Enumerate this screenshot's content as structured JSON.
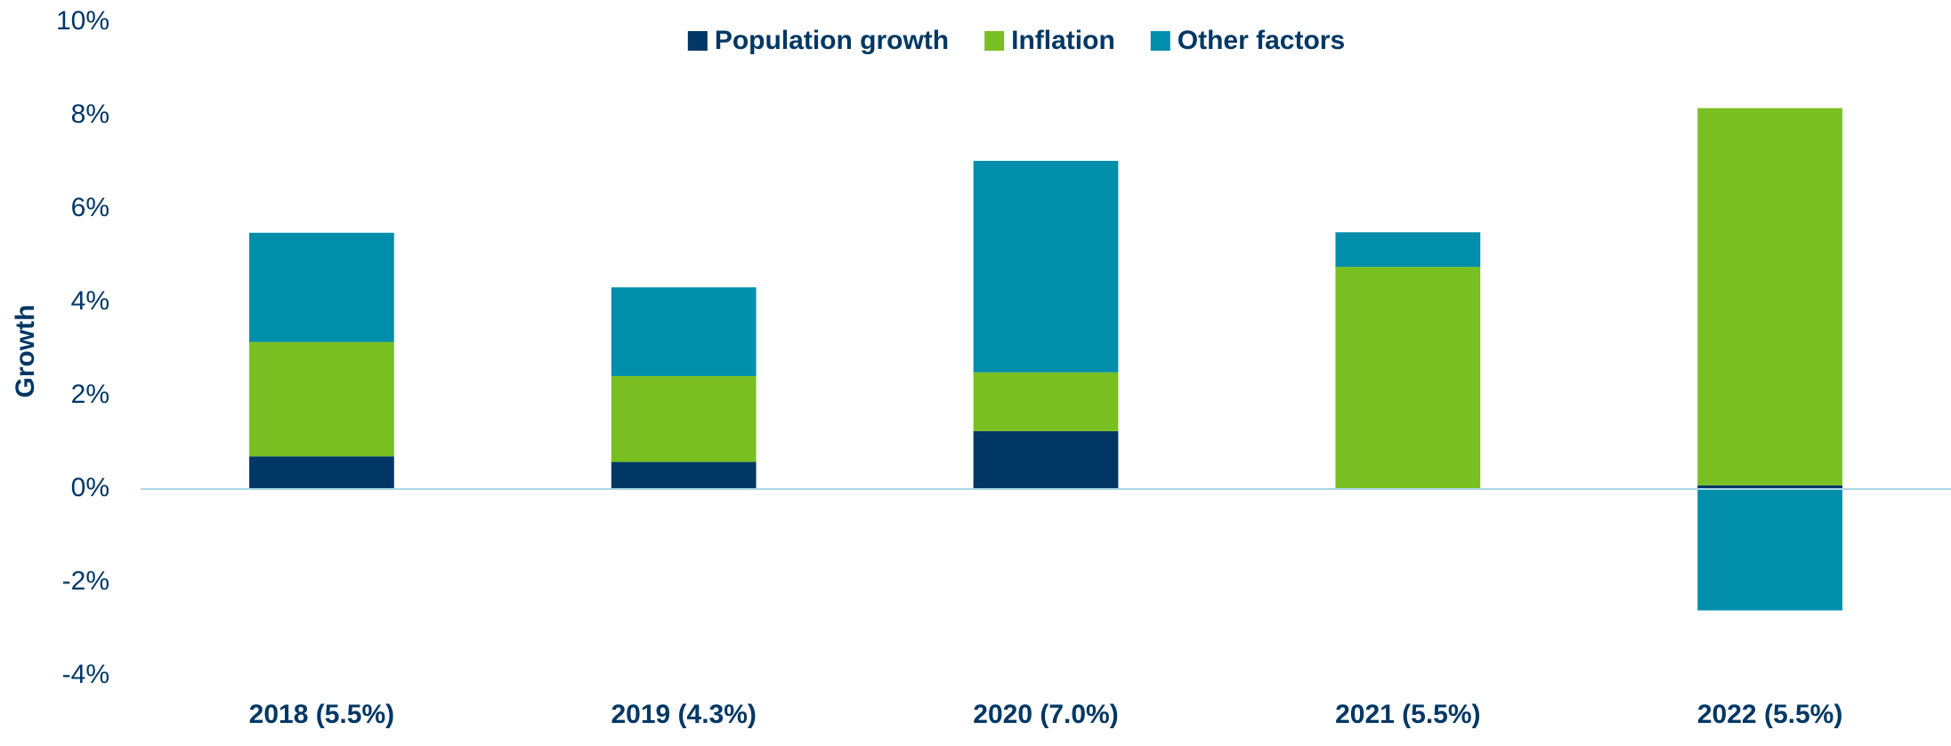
{
  "chart_data": {
    "type": "stacked_bar",
    "y_axis_label": "Growth",
    "categories": [
      "2018 (5.5%)",
      "2019 (4.3%)",
      "2020 (7.0%)",
      "2021 (5.5%)",
      "2022 (5.5%)"
    ],
    "series": [
      {
        "name": "Population growth",
        "color": "#003764",
        "values": [
          0.7,
          0.58,
          1.24,
          0,
          0.08
        ]
      },
      {
        "name": "Inflation",
        "color": "#7abf22",
        "values": [
          2.45,
          1.84,
          1.26,
          4.76,
          8.08
        ]
      },
      {
        "name": "Other factors",
        "color": "#008eaa",
        "values": [
          2.34,
          1.9,
          4.53,
          0.74,
          -2.6
        ]
      }
    ],
    "ylim": [
      -4,
      10
    ],
    "yticks": [
      {
        "value": -4,
        "label": "-4%"
      },
      {
        "value": -2,
        "label": "-2%"
      },
      {
        "value": 0,
        "label": "0%"
      },
      {
        "value": 2,
        "label": "2%"
      },
      {
        "value": 4,
        "label": "4%"
      },
      {
        "value": 6,
        "label": "6%"
      },
      {
        "value": 8,
        "label": "8%"
      },
      {
        "value": 10,
        "label": "10%"
      }
    ],
    "grid": false,
    "legend": "top"
  }
}
